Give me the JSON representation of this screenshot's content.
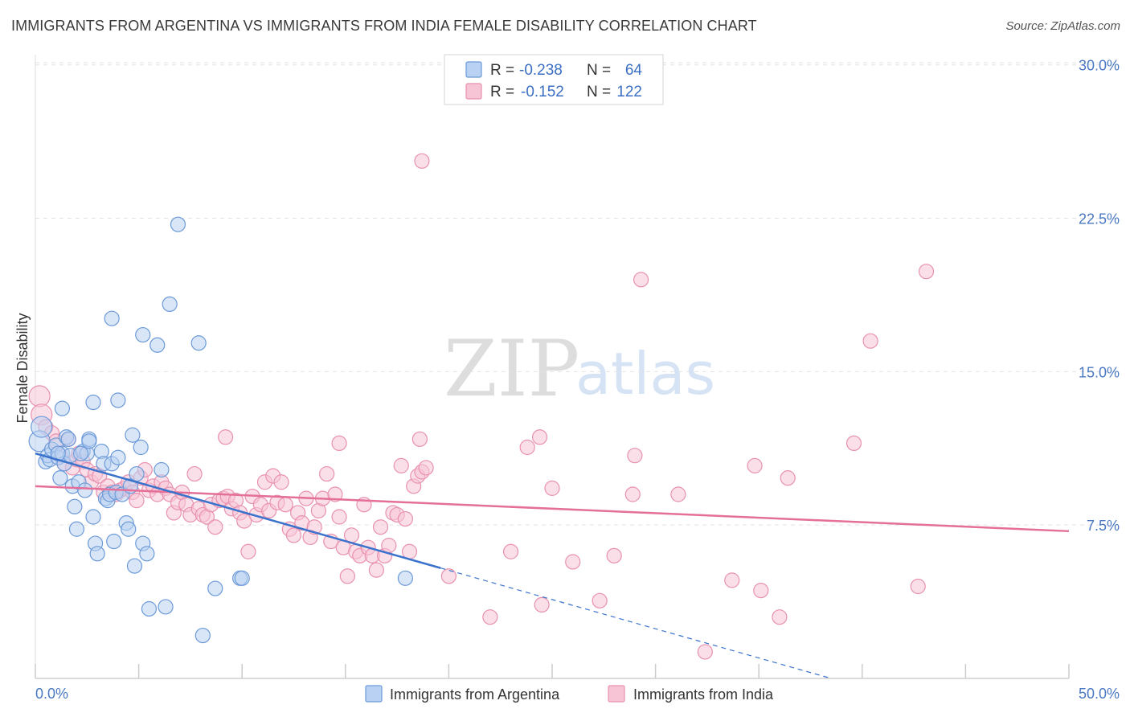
{
  "title": "IMMIGRANTS FROM ARGENTINA VS IMMIGRANTS FROM INDIA FEMALE DISABILITY CORRELATION CHART",
  "source": "Source: ZipAtlas.com",
  "watermark": {
    "zip": "ZIP",
    "atlas": "atlas"
  },
  "colors": {
    "argentina_fill": "#b9d1f3",
    "argentina_stroke": "#6c9ad8",
    "argentina_line": "#3b73cc",
    "india_fill": "#f7c4d5",
    "india_stroke": "#e891b0",
    "india_line": "#e4709a",
    "grid": "#e2e2e2",
    "tick_text": "#4a78c2"
  },
  "legend": {
    "rows": [
      {
        "r_label": "R =",
        "r_value": "-0.238",
        "n_label": "N =",
        "n_value": "64"
      },
      {
        "r_label": "R =",
        "r_value": "-0.152",
        "n_label": "N =",
        "n_value": "122"
      }
    ]
  },
  "chart_data": {
    "type": "scatter",
    "title": "IMMIGRANTS FROM ARGENTINA VS IMMIGRANTS FROM INDIA FEMALE DISABILITY CORRELATION CHART",
    "xlabel": "",
    "ylabel": "Female Disability",
    "xlim": [
      0,
      50
    ],
    "ylim": [
      0,
      30.5
    ],
    "x_tick_labels": [
      "0.0%",
      "50.0%"
    ],
    "y_ticks": [
      7.5,
      15.0,
      22.5,
      30.0
    ],
    "y_tick_labels": [
      "7.5%",
      "15.0%",
      "22.5%",
      "30.0%"
    ],
    "grid": "horizontal dashed",
    "legend_placement": "top-center",
    "series": [
      {
        "name": "Immigrants from Argentina",
        "r": -0.238,
        "n": 64,
        "trend": {
          "x0": 0,
          "y0": 11.0,
          "x1": 19.6,
          "y1": 5.4,
          "dashed_to_x": 38.5
        },
        "points": [
          [
            0.2,
            11.6
          ],
          [
            0.3,
            12.3
          ],
          [
            0.5,
            10.6
          ],
          [
            0.6,
            10.9
          ],
          [
            0.7,
            10.7
          ],
          [
            0.8,
            11.2
          ],
          [
            1.0,
            11.4
          ],
          [
            1.1,
            10.8
          ],
          [
            1.2,
            9.8
          ],
          [
            1.3,
            11.0
          ],
          [
            1.4,
            10.5
          ],
          [
            1.5,
            11.8
          ],
          [
            1.6,
            11.7
          ],
          [
            1.7,
            10.9
          ],
          [
            1.8,
            9.4
          ],
          [
            1.9,
            8.4
          ],
          [
            2.0,
            7.3
          ],
          [
            2.1,
            9.6
          ],
          [
            2.3,
            11.1
          ],
          [
            2.4,
            9.2
          ],
          [
            2.5,
            11.0
          ],
          [
            2.6,
            11.7
          ],
          [
            2.8,
            7.9
          ],
          [
            2.9,
            6.6
          ],
          [
            3.0,
            6.1
          ],
          [
            3.2,
            11.1
          ],
          [
            3.3,
            10.5
          ],
          [
            3.4,
            8.8
          ],
          [
            3.5,
            8.7
          ],
          [
            3.6,
            9.0
          ],
          [
            3.7,
            10.5
          ],
          [
            3.8,
            6.7
          ],
          [
            3.9,
            9.1
          ],
          [
            4.0,
            10.8
          ],
          [
            4.2,
            9.0
          ],
          [
            4.4,
            7.6
          ],
          [
            4.5,
            7.3
          ],
          [
            4.6,
            9.4
          ],
          [
            4.7,
            11.9
          ],
          [
            4.8,
            5.5
          ],
          [
            4.9,
            10.0
          ],
          [
            5.1,
            11.3
          ],
          [
            5.2,
            6.6
          ],
          [
            5.4,
            6.1
          ],
          [
            5.5,
            3.4
          ],
          [
            5.9,
            16.3
          ],
          [
            6.1,
            10.2
          ],
          [
            6.3,
            3.5
          ],
          [
            6.5,
            18.3
          ],
          [
            6.9,
            22.2
          ],
          [
            7.9,
            16.4
          ],
          [
            8.1,
            2.1
          ],
          [
            8.7,
            4.4
          ],
          [
            9.9,
            4.9
          ],
          [
            10.0,
            4.9
          ],
          [
            17.9,
            4.9
          ],
          [
            1.3,
            13.2
          ],
          [
            2.8,
            13.5
          ],
          [
            3.7,
            17.6
          ],
          [
            4.0,
            13.6
          ],
          [
            5.2,
            16.8
          ],
          [
            2.2,
            11.0
          ],
          [
            2.6,
            11.6
          ],
          [
            1.1,
            11.0
          ]
        ]
      },
      {
        "name": "Immigrants from India",
        "r": -0.152,
        "n": 122,
        "trend": {
          "x0": 0,
          "y0": 9.4,
          "x1": 50,
          "y1": 7.2
        },
        "points": [
          [
            0.2,
            13.8
          ],
          [
            0.3,
            12.9
          ],
          [
            0.5,
            12.3
          ],
          [
            0.8,
            12.0
          ],
          [
            1.0,
            11.6
          ],
          [
            1.2,
            10.9
          ],
          [
            1.4,
            10.5
          ],
          [
            1.6,
            11.7
          ],
          [
            1.8,
            10.3
          ],
          [
            2.0,
            10.7
          ],
          [
            2.1,
            11.0
          ],
          [
            2.3,
            10.6
          ],
          [
            2.5,
            10.2
          ],
          [
            2.7,
            9.6
          ],
          [
            2.9,
            10.0
          ],
          [
            3.1,
            9.9
          ],
          [
            3.3,
            9.1
          ],
          [
            3.5,
            9.4
          ],
          [
            3.7,
            9.1
          ],
          [
            3.9,
            9.0
          ],
          [
            4.1,
            9.2
          ],
          [
            4.3,
            9.3
          ],
          [
            4.5,
            9.6
          ],
          [
            4.7,
            9.1
          ],
          [
            4.9,
            8.7
          ],
          [
            5.1,
            9.8
          ],
          [
            5.3,
            10.2
          ],
          [
            5.5,
            9.2
          ],
          [
            5.7,
            9.4
          ],
          [
            5.9,
            9.0
          ],
          [
            6.1,
            9.6
          ],
          [
            6.3,
            9.3
          ],
          [
            6.5,
            9.0
          ],
          [
            6.7,
            8.1
          ],
          [
            6.9,
            8.6
          ],
          [
            7.1,
            9.1
          ],
          [
            7.3,
            8.5
          ],
          [
            7.5,
            8.0
          ],
          [
            7.7,
            10.0
          ],
          [
            7.9,
            8.3
          ],
          [
            8.1,
            8.0
          ],
          [
            8.3,
            7.9
          ],
          [
            8.5,
            8.5
          ],
          [
            8.7,
            7.4
          ],
          [
            8.9,
            8.7
          ],
          [
            9.1,
            8.8
          ],
          [
            9.3,
            8.9
          ],
          [
            9.5,
            8.3
          ],
          [
            9.7,
            8.7
          ],
          [
            9.9,
            8.1
          ],
          [
            10.1,
            7.7
          ],
          [
            10.3,
            6.2
          ],
          [
            10.5,
            8.9
          ],
          [
            10.7,
            8.0
          ],
          [
            10.9,
            8.5
          ],
          [
            11.1,
            9.6
          ],
          [
            11.3,
            8.2
          ],
          [
            11.5,
            9.9
          ],
          [
            11.7,
            8.6
          ],
          [
            11.9,
            9.6
          ],
          [
            12.1,
            8.5
          ],
          [
            12.3,
            7.3
          ],
          [
            12.5,
            7.0
          ],
          [
            12.7,
            8.1
          ],
          [
            12.9,
            7.6
          ],
          [
            13.1,
            8.8
          ],
          [
            13.3,
            6.9
          ],
          [
            13.5,
            7.4
          ],
          [
            13.7,
            8.2
          ],
          [
            13.9,
            8.8
          ],
          [
            14.1,
            10.0
          ],
          [
            14.3,
            6.7
          ],
          [
            14.5,
            9.0
          ],
          [
            14.7,
            7.9
          ],
          [
            14.9,
            6.4
          ],
          [
            15.1,
            5.0
          ],
          [
            15.3,
            7.0
          ],
          [
            15.5,
            6.2
          ],
          [
            15.7,
            6.0
          ],
          [
            15.9,
            8.5
          ],
          [
            16.1,
            6.4
          ],
          [
            16.3,
            6.0
          ],
          [
            16.5,
            5.3
          ],
          [
            16.7,
            7.4
          ],
          [
            16.9,
            6.0
          ],
          [
            17.1,
            6.5
          ],
          [
            17.3,
            8.1
          ],
          [
            17.5,
            8.0
          ],
          [
            17.7,
            10.4
          ],
          [
            17.9,
            7.8
          ],
          [
            18.1,
            6.2
          ],
          [
            18.3,
            9.4
          ],
          [
            18.5,
            9.9
          ],
          [
            18.7,
            10.1
          ],
          [
            18.9,
            10.3
          ],
          [
            9.2,
            11.8
          ],
          [
            14.7,
            11.5
          ],
          [
            18.6,
            11.7
          ],
          [
            18.7,
            25.3
          ],
          [
            23.8,
            11.3
          ],
          [
            24.4,
            11.8
          ],
          [
            25.0,
            9.3
          ],
          [
            29.0,
            10.9
          ],
          [
            28.9,
            9.0
          ],
          [
            29.3,
            19.5
          ],
          [
            31.1,
            9.0
          ],
          [
            34.8,
            10.4
          ],
          [
            36.4,
            9.8
          ],
          [
            39.6,
            11.5
          ],
          [
            40.4,
            16.5
          ],
          [
            42.7,
            4.5
          ],
          [
            43.1,
            19.9
          ],
          [
            20.0,
            5.0
          ],
          [
            22.0,
            3.0
          ],
          [
            23.0,
            6.2
          ],
          [
            24.5,
            3.6
          ],
          [
            26.0,
            5.7
          ],
          [
            27.3,
            3.8
          ],
          [
            28.0,
            6.0
          ],
          [
            32.4,
            1.3
          ],
          [
            33.7,
            4.8
          ],
          [
            35.1,
            4.3
          ],
          [
            36.0,
            3.0
          ]
        ]
      }
    ]
  },
  "bottom_legend": {
    "items": [
      {
        "label": "Immigrants from Argentina"
      },
      {
        "label": "Immigrants from India"
      }
    ]
  }
}
